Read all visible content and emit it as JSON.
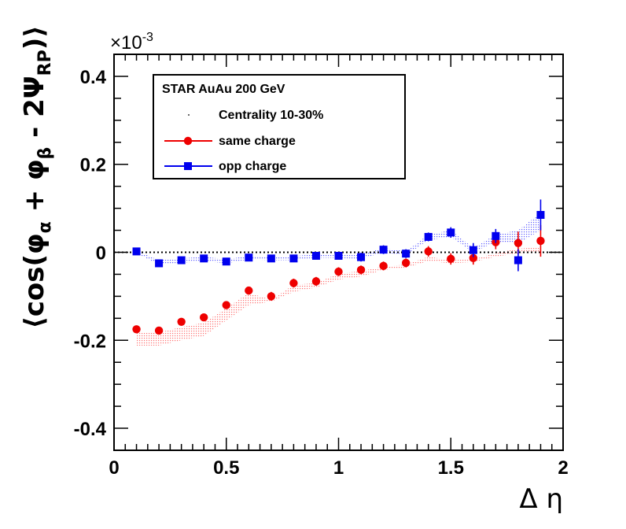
{
  "chart_data": {
    "type": "scatter",
    "title": "",
    "xlabel": "Δ η",
    "ylabel": "⟨cos(φα + φβ - 2ΨRP)⟩",
    "y_multiplier": "×10-3",
    "xlim": [
      0,
      2
    ],
    "ylim": [
      -0.45,
      0.45
    ],
    "x_ticks": [
      0,
      0.5,
      1,
      1.5,
      2
    ],
    "x_tick_labels": [
      "0",
      "0.5",
      "1",
      "1.5",
      "2"
    ],
    "y_ticks": [
      -0.4,
      -0.2,
      0,
      0.2,
      0.4
    ],
    "y_tick_labels": [
      "-0.4",
      "-0.2",
      "0",
      "0.2",
      "0.4"
    ],
    "grid": false,
    "reference_line": {
      "y": 0,
      "style": "dotted"
    },
    "legend": {
      "position": "top-left",
      "header": "STAR   AuAu 200 GeV",
      "subheader": "Centrality 10-30%",
      "entries": [
        "same charge",
        "opp charge"
      ]
    },
    "colors": {
      "same": "#ee0000",
      "opp": "#0000ee",
      "band_same": "#ff6e6e",
      "band_opp": "#5a5aff"
    },
    "series": [
      {
        "name": "same charge",
        "marker": "circle",
        "color": "#ee0000",
        "x": [
          0.1,
          0.2,
          0.3,
          0.4,
          0.5,
          0.6,
          0.7,
          0.8,
          0.9,
          1.0,
          1.1,
          1.2,
          1.3,
          1.4,
          1.5,
          1.6,
          1.7,
          1.8,
          1.9
        ],
        "y": [
          -0.175,
          -0.178,
          -0.158,
          -0.148,
          -0.12,
          -0.087,
          -0.1,
          -0.07,
          -0.066,
          -0.044,
          -0.04,
          -0.031,
          -0.024,
          0.002,
          -0.015,
          -0.013,
          0.023,
          0.021,
          0.026
        ],
        "err": [
          0.006,
          0.006,
          0.006,
          0.006,
          0.006,
          0.009,
          0.01,
          0.01,
          0.01,
          0.01,
          0.01,
          0.01,
          0.01,
          0.012,
          0.013,
          0.015,
          0.016,
          0.026,
          0.036
        ],
        "band_low": [
          -0.212,
          -0.212,
          -0.2,
          -0.19,
          -0.155,
          -0.12,
          -0.112,
          -0.09,
          -0.08,
          -0.062,
          -0.055,
          -0.04,
          -0.035,
          -0.02,
          -0.025,
          -0.022,
          -0.01,
          -0.002,
          0.0
        ],
        "band_high": [
          -0.18,
          -0.182,
          -0.17,
          -0.16,
          -0.127,
          -0.092,
          -0.108,
          -0.074,
          -0.07,
          -0.048,
          -0.043,
          -0.032,
          -0.028,
          -0.01,
          -0.018,
          -0.016,
          -0.002,
          0.008,
          0.012
        ]
      },
      {
        "name": "opp charge",
        "marker": "square",
        "color": "#0000ee",
        "x": [
          0.1,
          0.2,
          0.3,
          0.4,
          0.5,
          0.6,
          0.7,
          0.8,
          0.9,
          1.0,
          1.1,
          1.2,
          1.3,
          1.4,
          1.5,
          1.6,
          1.7,
          1.8,
          1.9
        ],
        "y": [
          0.002,
          -0.025,
          -0.018,
          -0.014,
          -0.021,
          -0.012,
          -0.014,
          -0.014,
          -0.008,
          -0.008,
          -0.011,
          0.006,
          -0.003,
          0.035,
          0.045,
          0.005,
          0.037,
          -0.018,
          0.085
        ],
        "err": [
          0.003,
          0.003,
          0.003,
          0.003,
          0.003,
          0.004,
          0.005,
          0.005,
          0.007,
          0.007,
          0.01,
          0.01,
          0.01,
          0.01,
          0.012,
          0.016,
          0.016,
          0.025,
          0.035
        ],
        "band_low": [
          -0.002,
          -0.028,
          -0.024,
          -0.02,
          -0.025,
          -0.016,
          -0.018,
          -0.018,
          -0.012,
          -0.013,
          -0.015,
          0.0,
          -0.007,
          0.028,
          0.035,
          0.0,
          0.024,
          0.02,
          0.05
        ],
        "band_high": [
          0.004,
          -0.018,
          -0.014,
          -0.01,
          -0.016,
          -0.008,
          -0.009,
          -0.009,
          -0.004,
          -0.004,
          -0.006,
          0.01,
          0.002,
          0.04,
          0.05,
          0.01,
          0.04,
          0.05,
          0.09
        ]
      }
    ]
  }
}
